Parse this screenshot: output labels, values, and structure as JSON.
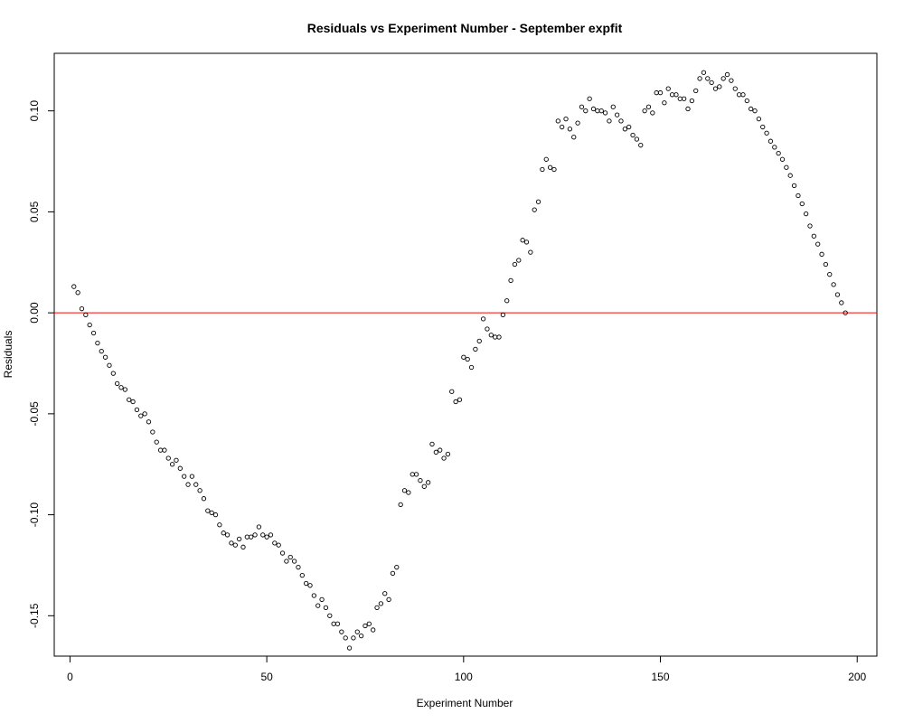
{
  "chart_data": {
    "type": "scatter",
    "title": "Residuals vs Experiment Number - September expfit",
    "xlabel": "Experiment Number",
    "ylabel": "Residuals",
    "xlim": [
      -4,
      205
    ],
    "ylim": [
      -0.17,
      0.1285
    ],
    "x_ticks": [
      0,
      50,
      100,
      150,
      200
    ],
    "x_tick_labels": [
      "0",
      "50",
      "100",
      "150",
      "200"
    ],
    "y_ticks": [
      -0.15,
      -0.1,
      -0.05,
      0.0,
      0.05,
      0.1
    ],
    "y_tick_labels": [
      "-0.15",
      "-0.10",
      "-0.05",
      "0.00",
      "0.05",
      "0.10"
    ],
    "reference_line": {
      "y": 0,
      "color": "#ff0000"
    },
    "point_color": "#000000",
    "grid": false,
    "series": [
      {
        "x": [
          1,
          2,
          3,
          4,
          5,
          6,
          7,
          8,
          9,
          10,
          11,
          12,
          13,
          14,
          15,
          16,
          17,
          18,
          19,
          20,
          21,
          22,
          23,
          24,
          25,
          26,
          27,
          28,
          29,
          30,
          31,
          32,
          33,
          34,
          35,
          36,
          37,
          38,
          39,
          40,
          41,
          42,
          43,
          44,
          45,
          46,
          47,
          48,
          49,
          50,
          51,
          52,
          53,
          54,
          55,
          56,
          57,
          58,
          59,
          60,
          61,
          62,
          63,
          64,
          65,
          66,
          67,
          68,
          69,
          70,
          71,
          72,
          73,
          74,
          75,
          76,
          77,
          78,
          79,
          80,
          81,
          82,
          83,
          84,
          85,
          86,
          87,
          88,
          89,
          90,
          91,
          92,
          93,
          94,
          95,
          96,
          97,
          98,
          99,
          100,
          101,
          102,
          103,
          104,
          105,
          106,
          107,
          108,
          109,
          110,
          111,
          112,
          113,
          114,
          115,
          116,
          117,
          118,
          119,
          120,
          121,
          122,
          123,
          124,
          125,
          126,
          127,
          128,
          129,
          130,
          131,
          132,
          133,
          134,
          135,
          136,
          137,
          138,
          139,
          140,
          141,
          142,
          143,
          144,
          145,
          146,
          147,
          148,
          149,
          150,
          151,
          152,
          153,
          154,
          155,
          156,
          157,
          158,
          159,
          160,
          161,
          162,
          163,
          164,
          165,
          166,
          167,
          168,
          169,
          170,
          171,
          172,
          173,
          174,
          175,
          176,
          177,
          178,
          179,
          180,
          181,
          182,
          183,
          184,
          185,
          186,
          187,
          188,
          189,
          190,
          191,
          192,
          193,
          194,
          195,
          196,
          197
        ],
        "y": [
          0.013,
          0.01,
          0.002,
          -0.001,
          -0.006,
          -0.01,
          -0.015,
          -0.019,
          -0.022,
          -0.026,
          -0.03,
          -0.035,
          -0.037,
          -0.038,
          -0.043,
          -0.044,
          -0.048,
          -0.051,
          -0.05,
          -0.054,
          -0.059,
          -0.064,
          -0.068,
          -0.068,
          -0.072,
          -0.075,
          -0.073,
          -0.077,
          -0.081,
          -0.085,
          -0.081,
          -0.085,
          -0.088,
          -0.092,
          -0.098,
          -0.099,
          -0.1,
          -0.105,
          -0.109,
          -0.11,
          -0.114,
          -0.115,
          -0.112,
          -0.116,
          -0.111,
          -0.111,
          -0.11,
          -0.106,
          -0.11,
          -0.111,
          -0.11,
          -0.114,
          -0.115,
          -0.119,
          -0.123,
          -0.121,
          -0.123,
          -0.126,
          -0.13,
          -0.134,
          -0.135,
          -0.14,
          -0.145,
          -0.142,
          -0.146,
          -0.15,
          -0.154,
          -0.154,
          -0.158,
          -0.161,
          -0.166,
          -0.161,
          -0.158,
          -0.16,
          -0.155,
          -0.154,
          -0.157,
          -0.146,
          -0.144,
          -0.139,
          -0.142,
          -0.129,
          -0.126,
          -0.095,
          -0.088,
          -0.089,
          -0.08,
          -0.08,
          -0.083,
          -0.086,
          -0.084,
          -0.065,
          -0.069,
          -0.068,
          -0.072,
          -0.07,
          -0.039,
          -0.044,
          -0.043,
          -0.022,
          -0.023,
          -0.027,
          -0.018,
          -0.014,
          -0.003,
          -0.008,
          -0.011,
          -0.012,
          -0.012,
          -0.001,
          0.006,
          0.016,
          0.024,
          0.026,
          0.036,
          0.035,
          0.03,
          0.051,
          0.055,
          0.071,
          0.076,
          0.072,
          0.071,
          0.095,
          0.092,
          0.096,
          0.091,
          0.087,
          0.094,
          0.102,
          0.1,
          0.106,
          0.101,
          0.1,
          0.1,
          0.099,
          0.095,
          0.102,
          0.098,
          0.095,
          0.091,
          0.092,
          0.088,
          0.086,
          0.083,
          0.1,
          0.102,
          0.099,
          0.109,
          0.109,
          0.104,
          0.111,
          0.108,
          0.108,
          0.106,
          0.106,
          0.101,
          0.105,
          0.11,
          0.116,
          0.119,
          0.116,
          0.114,
          0.111,
          0.112,
          0.116,
          0.118,
          0.115,
          0.111,
          0.108,
          0.108,
          0.105,
          0.101,
          0.1,
          0.096,
          0.092,
          0.089,
          0.085,
          0.082,
          0.079,
          0.076,
          0.072,
          0.068,
          0.063,
          0.058,
          0.054,
          0.049,
          0.043,
          0.038,
          0.034,
          0.029,
          0.024,
          0.019,
          0.014,
          0.009,
          0.005,
          0.0
        ]
      }
    ]
  }
}
